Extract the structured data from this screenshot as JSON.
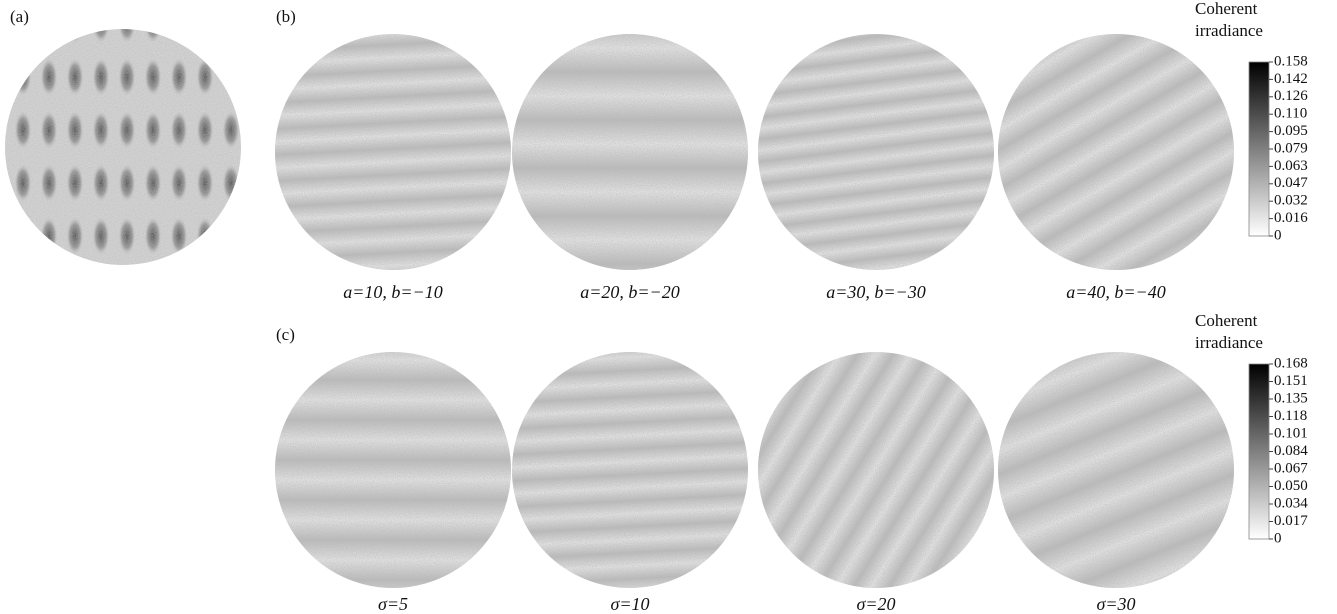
{
  "panels": [
    {
      "label": "(a)"
    },
    {
      "label": "(b)",
      "captions": [
        "a=10, b=−10",
        "a=20, b=−20",
        "a=30, b=−30",
        "a=40, b=−40"
      ]
    },
    {
      "label": "(c)",
      "captions": [
        "σ=5",
        "σ=10",
        "σ=20",
        "σ=30"
      ]
    }
  ],
  "colorbars": [
    {
      "title": [
        "Coherent",
        "irradiance"
      ],
      "ticks": [
        "0.158",
        "0.142",
        "0.126",
        "0.110",
        "0.095",
        "0.079",
        "0.063",
        "0.047",
        "0.032",
        "0.016",
        "0"
      ]
    },
    {
      "title": [
        "Coherent",
        "irradiance"
      ],
      "ticks": [
        "0.168",
        "0.151",
        "0.135",
        "0.118",
        "0.101",
        "0.084",
        "0.067",
        "0.050",
        "0.034",
        "0.017",
        "0"
      ]
    }
  ]
}
